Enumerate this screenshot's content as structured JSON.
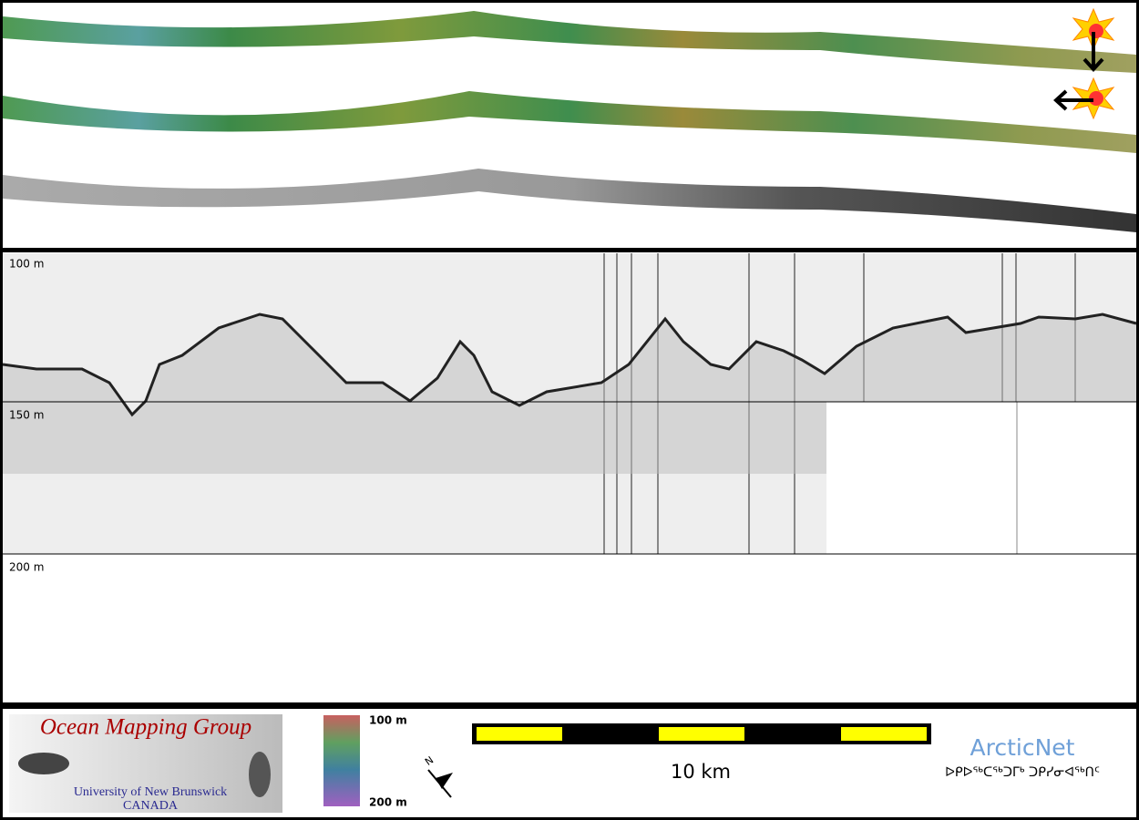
{
  "profile": {
    "depth_labels": [
      "100 m",
      "150 m",
      "200 m"
    ]
  },
  "footer": {
    "logo": {
      "title": "Ocean Mapping Group",
      "university": "University of New Brunswick",
      "country": "CANADA"
    },
    "color_scale": {
      "top": "100 m",
      "bottom": "200 m"
    },
    "compass": "N",
    "scale_bar": "10 km",
    "partner": {
      "name": "ArcticNet",
      "syllabics": "ᐅᑭᐅᖅᑕᖅᑐᒥᒃ ᑐᑭᓯᓂᐊᖅᑎᑦ"
    }
  }
}
